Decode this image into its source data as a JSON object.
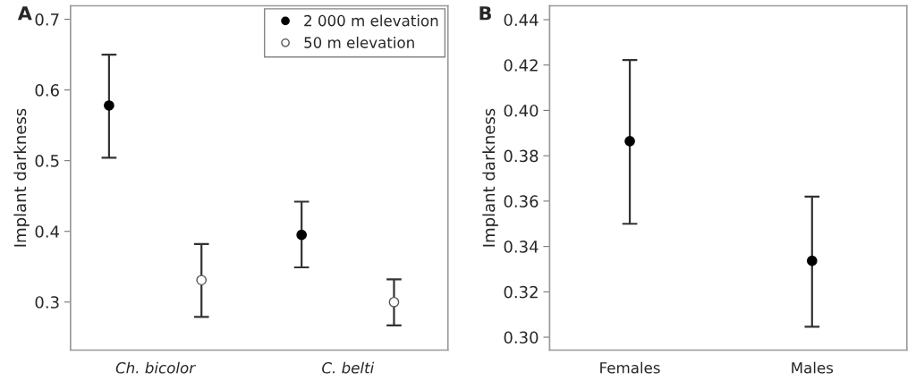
{
  "chart_data": [
    {
      "type": "scatter",
      "title": "A",
      "ylabel": "Implant darkness",
      "categories": [
        "Ch. bicolor",
        "C. belti"
      ],
      "ylim": [
        0.232,
        0.719
      ],
      "yticks": [
        {
          "value": 0.3,
          "label": "0.3"
        },
        {
          "value": 0.4,
          "label": "0.4"
        },
        {
          "value": 0.5,
          "label": "0.5"
        },
        {
          "value": 0.6,
          "label": "0.6"
        },
        {
          "value": 0.7,
          "label": "0.7"
        }
      ],
      "marker": "circle",
      "legend": "top right",
      "grid": false,
      "series": [
        {
          "name": "2 000 m elevation",
          "color": "#000000",
          "values": [
            0.578,
            0.395
          ],
          "errors": [
            [
              0.504,
              0.65
            ],
            [
              0.349,
              0.442
            ]
          ]
        },
        {
          "name": "50 m elevation",
          "color": "#ffffff",
          "values": [
            0.331,
            0.3
          ],
          "errors": [
            [
              0.279,
              0.382
            ],
            [
              0.267,
              0.332
            ]
          ]
        }
      ]
    },
    {
      "type": "scatter",
      "title": "B",
      "ylabel": "Implant darkness",
      "categories": [
        "Females",
        "Males"
      ],
      "ylim": [
        0.2943,
        0.4461
      ],
      "yticks": [
        {
          "value": 0.3,
          "label": "0.30"
        },
        {
          "value": 0.32,
          "label": "0.32"
        },
        {
          "value": 0.34,
          "label": "0.34"
        },
        {
          "value": 0.36,
          "label": "0.36"
        },
        {
          "value": 0.38,
          "label": "0.38"
        },
        {
          "value": 0.4,
          "label": "0.40"
        },
        {
          "value": 0.42,
          "label": "0.42"
        },
        {
          "value": 0.44,
          "label": "0.44"
        }
      ],
      "marker": "circle",
      "grid": false,
      "series": [
        {
          "color": "#000000",
          "values": [
            0.3864,
            0.3337
          ],
          "errors": [
            [
              0.35,
              0.4222
            ],
            [
              0.3046,
              0.362
            ]
          ]
        }
      ]
    }
  ]
}
